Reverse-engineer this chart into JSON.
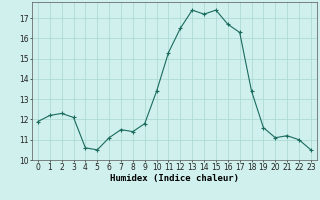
{
  "x": [
    0,
    1,
    2,
    3,
    4,
    5,
    6,
    7,
    8,
    9,
    10,
    11,
    12,
    13,
    14,
    15,
    16,
    17,
    18,
    19,
    20,
    21,
    22,
    23
  ],
  "y": [
    11.9,
    12.2,
    12.3,
    12.1,
    10.6,
    10.5,
    11.1,
    11.5,
    11.4,
    11.8,
    13.4,
    15.3,
    16.5,
    17.4,
    17.2,
    17.4,
    16.7,
    16.3,
    13.4,
    11.6,
    11.1,
    11.2,
    11.0,
    10.5
  ],
  "line_color": "#1a6b5e",
  "marker": "+",
  "marker_size": 3,
  "bg_color": "#cff0ec",
  "grid_color": "#a8d8d0",
  "xlabel": "Humidex (Indice chaleur)",
  "xlim": [
    -0.5,
    23.5
  ],
  "ylim": [
    10.0,
    17.8
  ],
  "yticks": [
    10,
    11,
    12,
    13,
    14,
    15,
    16,
    17
  ],
  "xticks": [
    0,
    1,
    2,
    3,
    4,
    5,
    6,
    7,
    8,
    9,
    10,
    11,
    12,
    13,
    14,
    15,
    16,
    17,
    18,
    19,
    20,
    21,
    22,
    23
  ],
  "tick_fontsize": 5.5,
  "xlabel_fontsize": 6.5
}
